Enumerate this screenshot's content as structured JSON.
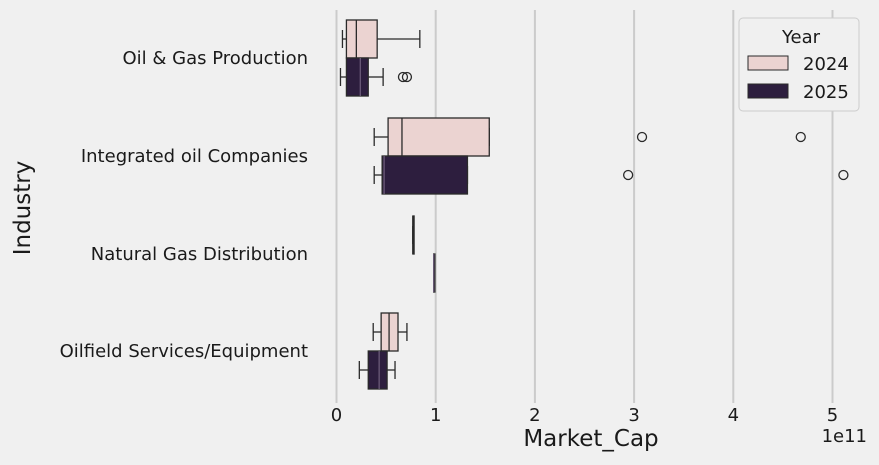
{
  "chart_data": {
    "type": "box",
    "orientation": "horizontal",
    "xlabel": "Market_Cap",
    "ylabel": "Industry",
    "x_multiplier_label": "1e11",
    "xlim": [
      -0.2,
      5.3
    ],
    "xticks": [
      0,
      1,
      2,
      3,
      4,
      5
    ],
    "xtick_labels": [
      "0",
      "1",
      "2",
      "3",
      "4",
      "5"
    ],
    "grid": "vertical",
    "legend": {
      "title": "Year",
      "placement": "top-right"
    },
    "categories": [
      "Oil & Gas Production",
      "Integrated oil Companies",
      "Natural Gas Distribution",
      "Oilfield Services/Equipment"
    ],
    "series": [
      {
        "name": "2024",
        "color": "#ebd3d1",
        "boxes": [
          {
            "whisker_low": 0.06,
            "q1": 0.1,
            "median": 0.2,
            "q3": 0.41,
            "whisker_high": 0.84,
            "outliers": []
          },
          {
            "whisker_low": 0.38,
            "q1": 0.52,
            "median": 0.66,
            "q3": 1.54,
            "whisker_high": 1.54,
            "outliers": [
              3.08,
              4.68
            ]
          },
          {
            "whisker_low": 0.77,
            "q1": 0.77,
            "median": 0.77,
            "q3": 0.77,
            "whisker_high": 0.77,
            "outliers": []
          },
          {
            "whisker_low": 0.37,
            "q1": 0.45,
            "median": 0.53,
            "q3": 0.62,
            "whisker_high": 0.71,
            "outliers": []
          }
        ]
      },
      {
        "name": "2025",
        "color": "#2d1e3e",
        "boxes": [
          {
            "whisker_low": 0.04,
            "q1": 0.1,
            "median": 0.24,
            "q3": 0.32,
            "whisker_high": 0.47,
            "outliers": [
              0.67,
              0.71
            ]
          },
          {
            "whisker_low": 0.38,
            "q1": 0.46,
            "median": 0.48,
            "q3": 1.32,
            "whisker_high": 1.32,
            "outliers": [
              2.94,
              5.11
            ]
          },
          {
            "whisker_low": 0.98,
            "q1": 0.98,
            "median": 0.98,
            "q3": 0.98,
            "whisker_high": 0.98,
            "outliers": []
          },
          {
            "whisker_low": 0.23,
            "q1": 0.32,
            "median": 0.43,
            "q3": 0.51,
            "whisker_high": 0.59,
            "outliers": []
          }
        ]
      }
    ]
  }
}
